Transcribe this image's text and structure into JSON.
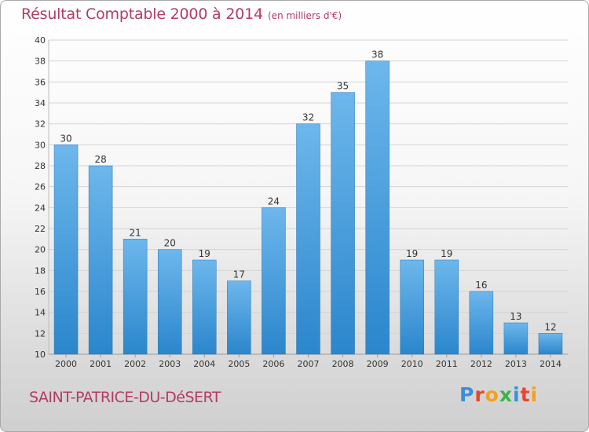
{
  "title": "Résultat Comptable 2000 à 2014",
  "subtitle": "(en milliers d'€)",
  "commune": "SAINT-PATRICE-DU-DéSERT",
  "logo": {
    "letters": [
      "P",
      "r",
      "o",
      "x",
      "i",
      "t",
      "i"
    ],
    "colors": [
      "#3a8fd8",
      "#e8462e",
      "#f2a21b",
      "#3ab54a",
      "#3a8fd8",
      "#e8462e",
      "#f2a21b"
    ]
  },
  "colors": {
    "bar_light": "#6db7ec",
    "bar_dark": "#2b86cc",
    "title": "#b43b63",
    "grid": "#d4d4d4"
  },
  "chart_data": {
    "type": "bar",
    "categories": [
      "2000",
      "2001",
      "2002",
      "2003",
      "2004",
      "2005",
      "2006",
      "2007",
      "2008",
      "2009",
      "2010",
      "2011",
      "2012",
      "2013",
      "2014"
    ],
    "values": [
      30,
      28,
      21,
      20,
      19,
      17,
      24,
      32,
      35,
      38,
      19,
      19,
      16,
      13,
      12
    ],
    "ylim": [
      10,
      40
    ],
    "yticks": [
      10,
      12,
      14,
      16,
      18,
      20,
      22,
      24,
      26,
      28,
      30,
      32,
      34,
      36,
      38,
      40
    ],
    "grid": true,
    "xlabel": "",
    "ylabel": ""
  }
}
